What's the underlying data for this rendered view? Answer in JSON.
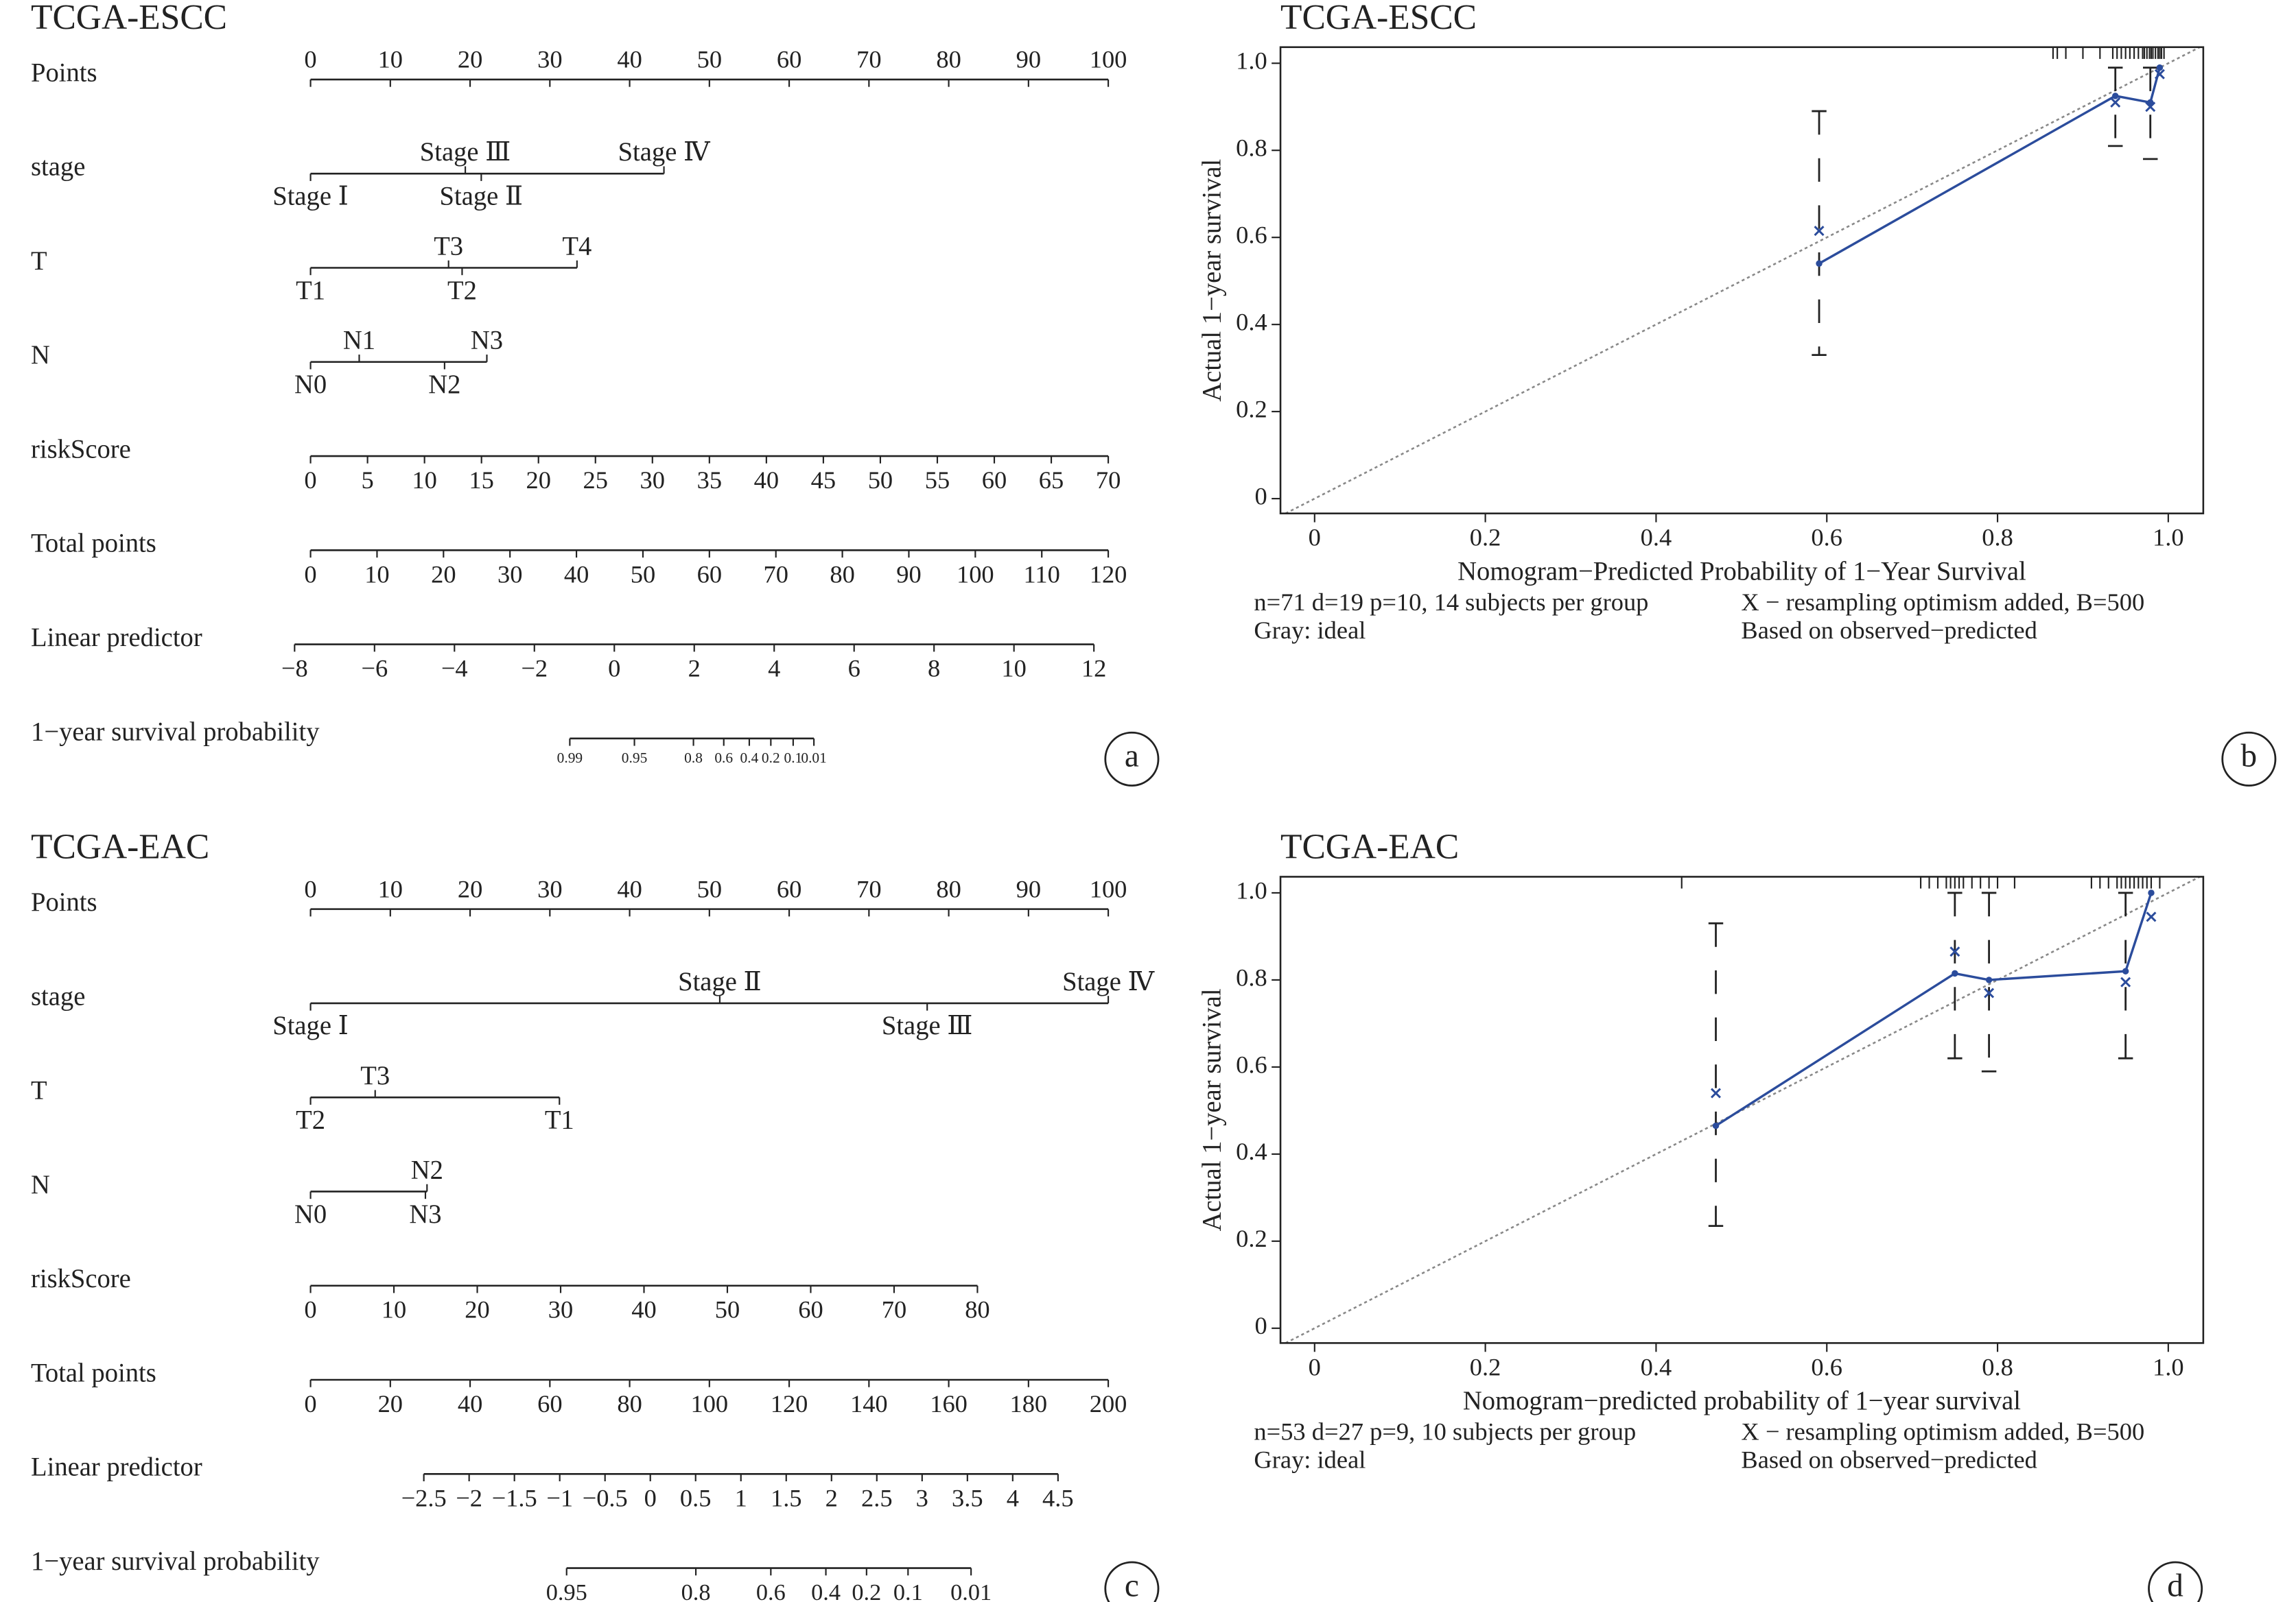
{
  "chart_data": [
    {
      "type": "nomogram",
      "title": "TCGA-ESCC",
      "panel": "a",
      "rows": [
        {
          "name": "Points",
          "ticks": [
            0,
            10,
            20,
            30,
            40,
            50,
            60,
            70,
            80,
            90,
            100
          ],
          "lim": [
            0,
            100
          ],
          "span": [
            0,
            100
          ],
          "side": "above"
        },
        {
          "name": "stage",
          "labels": [
            "Stage Ⅰ",
            "Stage Ⅲ",
            "Stage Ⅱ",
            "Stage Ⅳ"
          ],
          "at": [
            0,
            19.4,
            21.4,
            44.3
          ]
        },
        {
          "name": "T",
          "labels": [
            "T1",
            "T3",
            "T2",
            "T4"
          ],
          "at": [
            0,
            17.3,
            19,
            33.4
          ]
        },
        {
          "name": "N",
          "labels": [
            "N0",
            "N1",
            "N2",
            "N3"
          ],
          "at": [
            0,
            6.1,
            16.8,
            22.1
          ]
        },
        {
          "name": "riskScore",
          "ticks": [
            0,
            5,
            10,
            15,
            20,
            25,
            30,
            35,
            40,
            45,
            50,
            55,
            60,
            65,
            70
          ],
          "lim": [
            0,
            70
          ],
          "span": [
            0,
            100
          ],
          "side": "below"
        },
        {
          "name": "Total points",
          "ticks": [
            0,
            10,
            20,
            30,
            40,
            50,
            60,
            70,
            80,
            90,
            100,
            110,
            120
          ],
          "lim": [
            0,
            120
          ],
          "span": [
            0,
            100
          ],
          "side": "below"
        },
        {
          "name": "Linear predictor",
          "ticks": [
            {
              "value": -8,
              "label": "−8"
            },
            {
              "value": -6,
              "label": "−6"
            },
            {
              "value": -4,
              "label": "−4"
            },
            {
              "value": -2,
              "label": "−2"
            },
            0,
            2,
            4,
            6,
            8,
            10,
            12
          ],
          "lim": [
            -8,
            12
          ],
          "span": [
            -2,
            98.2
          ],
          "side": "below"
        },
        {
          "name": "1−year survival probability",
          "ticks": [
            0.99,
            0.95,
            0.8,
            0.6,
            0.4,
            0.2,
            0.1,
            0.01
          ],
          "at": [
            32.5,
            40.6,
            48,
            51.8,
            55,
            57.7,
            60.5,
            63.1
          ]
        }
      ]
    },
    {
      "type": "calibration",
      "title": "TCGA-ESCC",
      "panel": "b",
      "xlabel": "Nomogram−Predicted Probability of 1−Year Survival",
      "ylabel": "Actual 1−year survival",
      "xlim": [
        -0.04,
        1.041
      ],
      "ylim": [
        -0.034,
        1.037
      ],
      "xticks": [
        0,
        0.2,
        0.4,
        0.6,
        0.8,
        {
          "value": 1,
          "label": "1.0"
        }
      ],
      "yticks": [
        0,
        0.2,
        0.4,
        0.6,
        0.8,
        {
          "value": 1,
          "label": "1.0"
        }
      ],
      "x": [
        0.591,
        0.938,
        0.979,
        0.99
      ],
      "apparent": [
        0.54,
        0.925,
        0.91,
        0.99
      ],
      "bias_corrected": [
        0.615,
        0.91,
        0.9,
        0.975
      ],
      "ci_low": [
        0.33,
        0.81,
        0.78,
        null
      ],
      "ci_high": [
        0.89,
        0.99,
        0.99,
        null
      ],
      "rug": [
        0.865,
        0.87,
        0.88,
        0.9,
        0.92,
        0.935,
        0.94,
        0.945,
        0.95,
        0.955,
        0.96,
        0.965,
        0.97,
        0.972,
        0.975,
        0.978,
        0.98,
        0.982,
        0.985,
        0.988,
        0.99,
        0.992,
        0.995
      ],
      "color": "#2b4c9c",
      "ideal_color": "#888888",
      "notes": [
        "n=71 d=19 p=10, 14 subjects per group",
        "Gray: ideal",
        "X − resampling optimism added, B=500",
        "Based on observed−predicted"
      ]
    },
    {
      "type": "nomogram",
      "title": "TCGA-EAC",
      "panel": "c",
      "rows": [
        {
          "name": "Points",
          "ticks": [
            0,
            10,
            20,
            30,
            40,
            50,
            60,
            70,
            80,
            90,
            100
          ],
          "lim": [
            0,
            100
          ],
          "span": [
            0,
            100
          ],
          "side": "above"
        },
        {
          "name": "stage",
          "labels": [
            "Stage Ⅰ",
            "Stage Ⅱ",
            "Stage Ⅲ",
            "Stage Ⅳ"
          ],
          "at": [
            0,
            51.3,
            77.3,
            100
          ]
        },
        {
          "name": "T",
          "labels": [
            "T2",
            "T3",
            "T1"
          ],
          "at": [
            0,
            8.1,
            31.2
          ]
        },
        {
          "name": "N",
          "labels": [
            "N0",
            "N2",
            "N3"
          ],
          "at": [
            0,
            14.6,
            14.4
          ]
        },
        {
          "name": "riskScore",
          "ticks": [
            0,
            10,
            20,
            30,
            40,
            50,
            60,
            70,
            80
          ],
          "lim": [
            0,
            80
          ],
          "span": [
            0,
            83.6
          ],
          "side": "below"
        },
        {
          "name": "Total points",
          "ticks": [
            0,
            20,
            40,
            60,
            80,
            100,
            120,
            140,
            160,
            180,
            200
          ],
          "lim": [
            0,
            200
          ],
          "span": [
            0,
            100
          ],
          "side": "below"
        },
        {
          "name": "Linear predictor",
          "ticks": [
            {
              "value": -2.5,
              "label": "−2.5"
            },
            {
              "value": -2,
              "label": "−2"
            },
            {
              "value": -1.5,
              "label": "−1.5"
            },
            {
              "value": -1,
              "label": "−1"
            },
            {
              "value": -0.5,
              "label": "−0.5"
            },
            0,
            0.5,
            1,
            1.5,
            2,
            2.5,
            3,
            3.5,
            4,
            4.5
          ],
          "lim": [
            -2.5,
            4.5
          ],
          "span": [
            14.2,
            93.7
          ],
          "side": "below"
        },
        {
          "name": "1−year survival probability",
          "ticks": [
            0.95,
            0.8,
            0.6,
            0.4,
            0.2,
            0.1,
            0.01
          ],
          "at": [
            32.1,
            48.3,
            57.7,
            64.6,
            69.7,
            74.9,
            82.8
          ]
        }
      ]
    },
    {
      "type": "calibration",
      "title": "TCGA-EAC",
      "panel": "d",
      "xlabel": "Nomogram−predicted probability of 1−year survival",
      "ylabel": "Actual 1−year survival",
      "xlim": [
        -0.04,
        1.041
      ],
      "ylim": [
        -0.034,
        1.037
      ],
      "xticks": [
        0,
        0.2,
        0.4,
        0.6,
        0.8,
        {
          "value": 1,
          "label": "1.0"
        }
      ],
      "yticks": [
        0,
        0.2,
        0.4,
        0.6,
        0.8,
        {
          "value": 1,
          "label": "1.0"
        }
      ],
      "x": [
        0.47,
        0.75,
        0.79,
        0.95,
        0.98
      ],
      "apparent": [
        0.465,
        0.815,
        0.8,
        0.82,
        1.0
      ],
      "bias_corrected": [
        0.54,
        0.865,
        0.77,
        0.795,
        0.945
      ],
      "ci_low": [
        0.235,
        0.62,
        0.59,
        0.62,
        null
      ],
      "ci_high": [
        0.93,
        1.0,
        1.0,
        1.0,
        null
      ],
      "rug": [
        0.43,
        0.71,
        0.72,
        0.73,
        0.74,
        0.745,
        0.75,
        0.755,
        0.76,
        0.77,
        0.78,
        0.79,
        0.8,
        0.82,
        0.91,
        0.92,
        0.93,
        0.94,
        0.945,
        0.95,
        0.955,
        0.96,
        0.965,
        0.97,
        0.975,
        0.98,
        0.99
      ],
      "color": "#2b4c9c",
      "ideal_color": "#888888",
      "notes": [
        "n=53 d=27 p=9, 10 subjects per group",
        "Gray: ideal",
        "X − resampling optimism added, B=500",
        "Based on observed−predicted"
      ]
    }
  ]
}
